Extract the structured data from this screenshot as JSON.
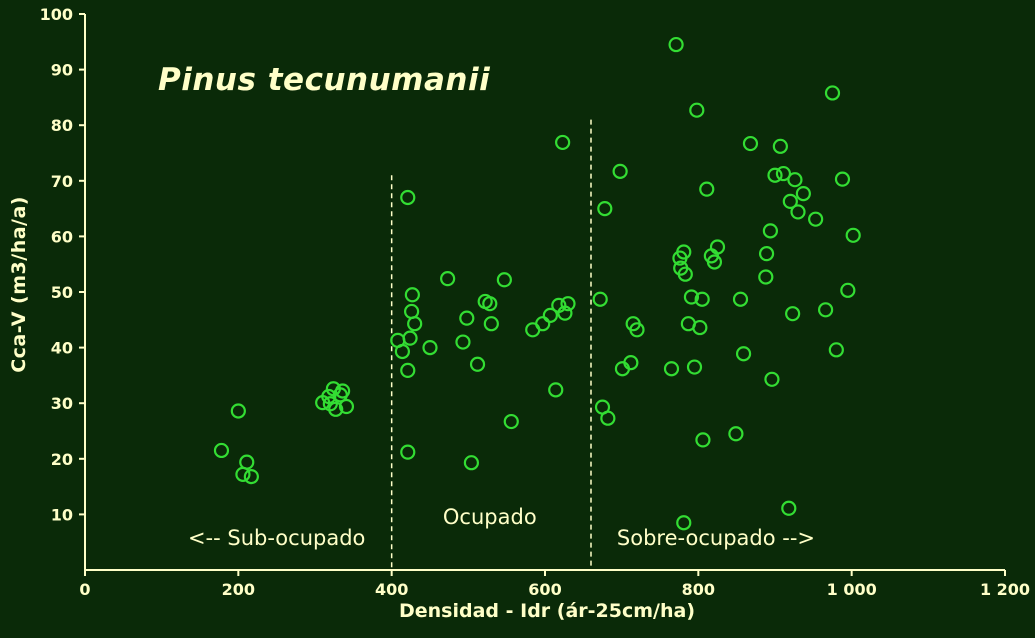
{
  "colors": {
    "background": "#0a2a08",
    "foreground": "#ffffc8",
    "marker": "#33dd33"
  },
  "chart_data": {
    "type": "scatter",
    "title": "Pinus tecunumanii",
    "xlabel": "Densidad - Idr  (ár-25cm/ha)",
    "ylabel": "Cca-V  (m3/ha/a)",
    "xlim": [
      0,
      1200
    ],
    "ylim": [
      0,
      100
    ],
    "grid": false,
    "legend": "none",
    "marker": {
      "shape": "open-circle",
      "color": "#33dd33"
    },
    "x_ticks": [
      {
        "value": 0,
        "label": "0"
      },
      {
        "value": 200,
        "label": "200"
      },
      {
        "value": 400,
        "label": "400"
      },
      {
        "value": 600,
        "label": "600"
      },
      {
        "value": 800,
        "label": "800"
      },
      {
        "value": 1000,
        "label": "1 000"
      },
      {
        "value": 1200,
        "label": "1 200"
      }
    ],
    "y_ticks": [
      {
        "value": 10,
        "label": "10"
      },
      {
        "value": 20,
        "label": "20"
      },
      {
        "value": 30,
        "label": "30"
      },
      {
        "value": 40,
        "label": "40"
      },
      {
        "value": 50,
        "label": "50"
      },
      {
        "value": 60,
        "label": "60"
      },
      {
        "value": 70,
        "label": "70"
      },
      {
        "value": 80,
        "label": "80"
      },
      {
        "value": 90,
        "label": "90"
      },
      {
        "value": 100,
        "label": "100"
      }
    ],
    "zones": {
      "dividers": [
        {
          "x": 400,
          "y_top": 71
        },
        {
          "x": 660,
          "y_top": 81
        }
      ],
      "labels": [
        {
          "text": "<-- Sub-ocupado",
          "x": 250,
          "y": 4.5
        },
        {
          "text": "Ocupado",
          "x": 528,
          "y": 8.3
        },
        {
          "text": "Sobre-ocupado -->",
          "x": 823,
          "y": 4.5
        }
      ]
    },
    "points": [
      [
        200,
        28.6
      ],
      [
        178,
        21.5
      ],
      [
        211,
        19.4
      ],
      [
        206,
        17.2
      ],
      [
        217,
        16.8
      ],
      [
        310,
        30.1
      ],
      [
        318,
        31.2
      ],
      [
        324,
        32.6
      ],
      [
        320,
        29.9
      ],
      [
        333,
        31.5
      ],
      [
        327,
        28.9
      ],
      [
        341,
        29.4
      ],
      [
        336,
        32.2
      ],
      [
        421,
        67.0
      ],
      [
        408,
        41.3
      ],
      [
        424,
        41.7
      ],
      [
        414,
        39.3
      ],
      [
        430,
        44.3
      ],
      [
        426,
        46.5
      ],
      [
        427,
        49.5
      ],
      [
        421,
        35.9
      ],
      [
        421,
        21.2
      ],
      [
        450,
        40.0
      ],
      [
        473,
        52.4
      ],
      [
        493,
        41.0
      ],
      [
        498,
        45.3
      ],
      [
        504,
        19.3
      ],
      [
        512,
        37.0
      ],
      [
        522,
        48.3
      ],
      [
        528,
        47.9
      ],
      [
        530,
        44.3
      ],
      [
        547,
        52.2
      ],
      [
        556,
        26.7
      ],
      [
        584,
        43.2
      ],
      [
        597,
        44.3
      ],
      [
        607,
        45.8
      ],
      [
        614,
        32.4
      ],
      [
        618,
        47.6
      ],
      [
        626,
        46.2
      ],
      [
        630,
        47.9
      ],
      [
        623,
        76.9
      ],
      [
        672,
        48.7
      ],
      [
        678,
        65.0
      ],
      [
        698,
        71.7
      ],
      [
        675,
        29.3
      ],
      [
        682,
        27.3
      ],
      [
        701,
        36.2
      ],
      [
        712,
        37.3
      ],
      [
        715,
        44.3
      ],
      [
        720,
        43.2
      ],
      [
        771,
        94.5
      ],
      [
        798,
        82.7
      ],
      [
        781,
        57.2
      ],
      [
        776,
        56.1
      ],
      [
        777,
        54.3
      ],
      [
        783,
        53.2
      ],
      [
        787,
        44.3
      ],
      [
        802,
        43.6
      ],
      [
        791,
        49.1
      ],
      [
        805,
        48.7
      ],
      [
        765,
        36.2
      ],
      [
        795,
        36.5
      ],
      [
        781,
        8.5
      ],
      [
        806,
        23.4
      ],
      [
        811,
        68.5
      ],
      [
        817,
        56.5
      ],
      [
        825,
        58.1
      ],
      [
        821,
        55.4
      ],
      [
        855,
        48.7
      ],
      [
        849,
        24.5
      ],
      [
        868,
        76.7
      ],
      [
        859,
        38.9
      ],
      [
        889,
        56.9
      ],
      [
        894,
        61.0
      ],
      [
        888,
        52.7
      ],
      [
        907,
        76.2
      ],
      [
        900,
        71.0
      ],
      [
        911,
        71.3
      ],
      [
        896,
        34.3
      ],
      [
        918,
        11.1
      ],
      [
        920,
        66.3
      ],
      [
        926,
        70.2
      ],
      [
        930,
        64.4
      ],
      [
        937,
        67.7
      ],
      [
        923,
        46.1
      ],
      [
        953,
        63.1
      ],
      [
        966,
        46.8
      ],
      [
        975,
        85.8
      ],
      [
        980,
        39.6
      ],
      [
        988,
        70.3
      ],
      [
        995,
        50.3
      ],
      [
        1002,
        60.2
      ]
    ]
  }
}
